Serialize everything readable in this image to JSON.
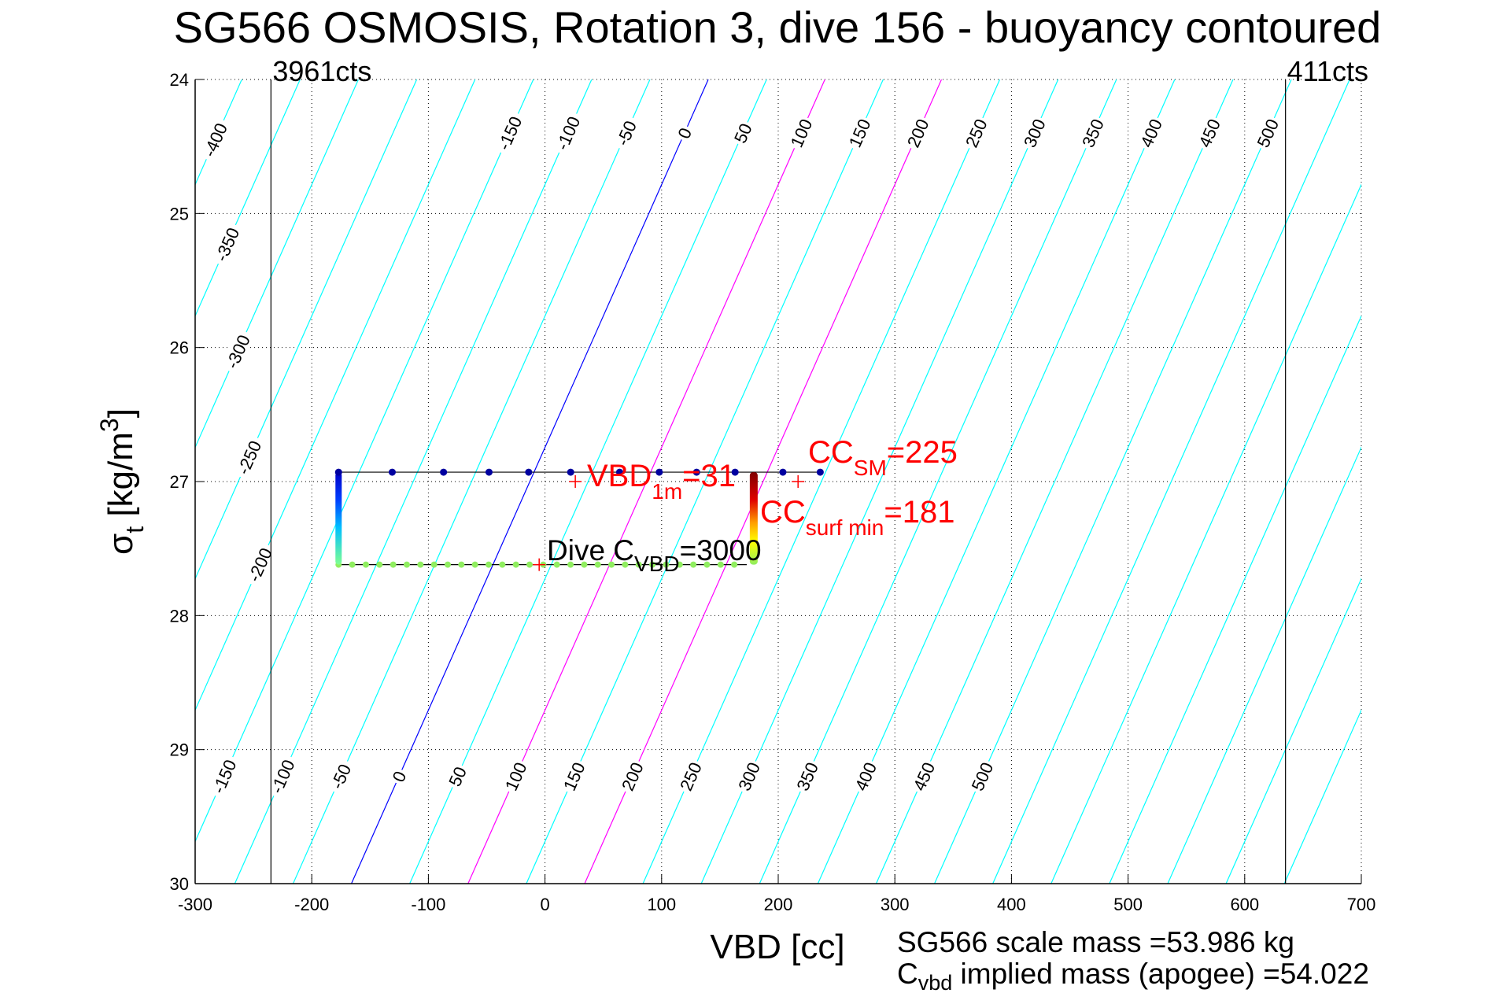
{
  "chart_data": {
    "type": "line",
    "title": "SG566 OSMOSIS, Rotation 3, dive 156 - buoyancy contoured",
    "xlabel": "VBD [cc]",
    "ylabel_main": "σ",
    "ylabel_sub": "t",
    "ylabel_unit": " [kg/m",
    "ylabel_sup": "3",
    "ylabel_close": "]",
    "xlim": [
      -300,
      700
    ],
    "ylim": [
      24,
      30
    ],
    "y_reversed": true,
    "grid": true,
    "xticks": [
      -300,
      -200,
      -100,
      0,
      100,
      200,
      300,
      400,
      500,
      600,
      700
    ],
    "yticks": [
      24,
      25,
      26,
      27,
      28,
      29,
      30
    ],
    "colors": {
      "contour": "#00ffff",
      "zero": "#0000ff",
      "highlight": "#ff00ff",
      "annotation": "#ff0000",
      "upper_dots": "#0000a0",
      "lower_dots": "#90ee60"
    },
    "contours": {
      "values": [
        -600,
        -550,
        -500,
        -450,
        -400,
        -350,
        -300,
        -250,
        -200,
        -150,
        -100,
        -50,
        0,
        50,
        100,
        150,
        200,
        250,
        300,
        350,
        400,
        450,
        500,
        550,
        600,
        650,
        700,
        750,
        800
      ],
      "highlight_values": [
        100,
        200
      ],
      "zero_value": 0,
      "vbd_at_sigma24_offset": 140,
      "slope_cc_per_sigma": -51,
      "labels_top": {
        "sigma": 24.4,
        "values": [
          -150,
          -100,
          -50,
          0,
          50,
          100,
          150,
          200,
          250,
          300,
          350,
          400,
          450,
          500
        ]
      },
      "labels_bottom": {
        "sigma": 29.2,
        "values": [
          -150,
          -100,
          -50,
          0,
          50,
          100,
          150,
          200,
          250,
          300,
          350,
          400,
          450,
          500
        ]
      },
      "labels_left": [
        {
          "value": -400,
          "sigma": 24.45
        },
        {
          "value": -350,
          "sigma": 25.23
        },
        {
          "value": -300,
          "sigma": 26.03
        },
        {
          "value": -250,
          "sigma": 26.82
        },
        {
          "value": -200,
          "sigma": 27.62
        }
      ]
    },
    "reference_lines": [
      {
        "vbd": -235,
        "label": "3961cts"
      },
      {
        "vbd": 635,
        "label": "411cts"
      }
    ],
    "series": [
      {
        "name": "descent-level",
        "sigma": 26.93,
        "vbd": [
          -177,
          -131,
          -87,
          -48,
          -14,
          22,
          64,
          98,
          130,
          163,
          204,
          236
        ]
      },
      {
        "name": "apogee-level",
        "sigma": 27.62,
        "vbd_start": -177,
        "vbd_end": 173,
        "step": 11.7
      }
    ],
    "vertical_segments": [
      {
        "name": "left-transition",
        "vbd": -177,
        "sigma": [
          26.93,
          27.62
        ]
      },
      {
        "name": "right-transition",
        "vbd": 179,
        "sigma": [
          26.93,
          27.62
        ]
      }
    ],
    "markers": [
      {
        "vbd": 26,
        "sigma": 27.0
      },
      {
        "vbd": 217,
        "sigma": 27.0
      },
      {
        "vbd": -5,
        "sigma": 27.62
      }
    ],
    "annotations": {
      "vbd1m": {
        "main": "VBD",
        "sub": "1m",
        "rest": "=31"
      },
      "ccsm": {
        "main": "CC",
        "sub": "SM",
        "rest": "=225"
      },
      "ccsurf": {
        "main": "CC",
        "sub": "surf min",
        "rest": "=181"
      },
      "divec": {
        "main": "Dive C",
        "sub": "VBD",
        "rest": "=3000"
      }
    },
    "footer": {
      "scale_mass": "SG566 scale mass =53.986 kg",
      "implied_main": "C",
      "implied_sub": "vbd",
      "implied_rest": " implied mass (apogee) =54.022"
    }
  }
}
